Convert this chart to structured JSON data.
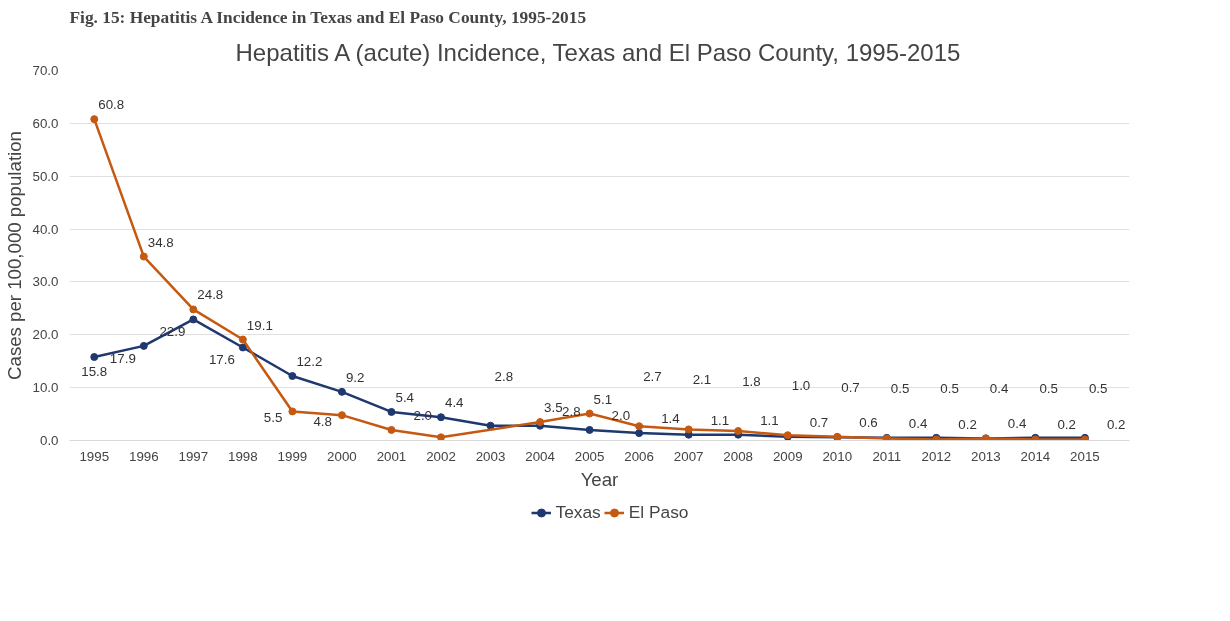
{
  "chart_data": {
    "type": "line",
    "title": "Hepatitis A (acute) Incidence, Texas and El Paso County, 1995-2015",
    "annotations": [
      "Fig. 15: Hepatitis A Incidence in Texas and El Paso County, 1995-2015"
    ],
    "xlabel": "Year",
    "ylabel": "Cases per 100,000 population",
    "categories": [
      "1995",
      "1996",
      "1997",
      "1998",
      "1999",
      "2000",
      "2001",
      "2002",
      "2003",
      "2004",
      "2005",
      "2006",
      "2007",
      "2008",
      "2009",
      "2010",
      "2011",
      "2012",
      "2013",
      "2014",
      "2015"
    ],
    "series": [
      {
        "name": "Texas",
        "color": "#1f3870",
        "values": [
          15.8,
          17.9,
          22.9,
          17.6,
          12.2,
          9.2,
          5.4,
          4.4,
          2.8,
          2.8,
          2.0,
          1.4,
          1.1,
          1.1,
          0.7,
          0.6,
          0.5,
          0.5,
          0.4,
          0.5,
          0.5
        ],
        "value_labels": [
          "15.8",
          "17.9",
          "22.9",
          "17.6",
          "12.2",
          "9.2",
          "5.4",
          "4.4",
          "2.8",
          "2.8",
          "2.0",
          "1.4",
          "1.1",
          "1.1",
          "0.7",
          "0.6",
          "0.5",
          "0.5",
          "0.4",
          "0.5",
          "0.5"
        ]
      },
      {
        "name": "El Paso",
        "color": "#c65911",
        "values": [
          60.8,
          34.8,
          24.8,
          19.1,
          5.5,
          4.8,
          2.0,
          0.6,
          null,
          3.5,
          5.1,
          2.7,
          2.1,
          1.8,
          1.0,
          0.7,
          0.4,
          0.2,
          0.4,
          0.2,
          0.2
        ],
        "value_labels": [
          "60.8",
          "34.8",
          "24.8",
          "19.1",
          "5.5",
          "4.8",
          "2.0",
          null,
          null,
          "3.5",
          "5.1",
          "2.7",
          "2.1",
          "1.8",
          "1.0",
          "0.7",
          "0.4",
          "0.2",
          "0.4",
          "0.2",
          "0.2"
        ]
      }
    ],
    "ylim": [
      0,
      70
    ],
    "yticks": [
      {
        "value": 0,
        "label": "0.0"
      },
      {
        "value": 10,
        "label": "10.0"
      },
      {
        "value": 20,
        "label": "20.0"
      },
      {
        "value": 30,
        "label": "30.0"
      },
      {
        "value": 40,
        "label": "40.0"
      },
      {
        "value": 50,
        "label": "50.0"
      },
      {
        "value": 60,
        "label": "60.0"
      },
      {
        "value": 70,
        "label": "70.0"
      }
    ],
    "grid": "y",
    "legend": "bottom",
    "marker": "circle",
    "line_style": "solid"
  }
}
